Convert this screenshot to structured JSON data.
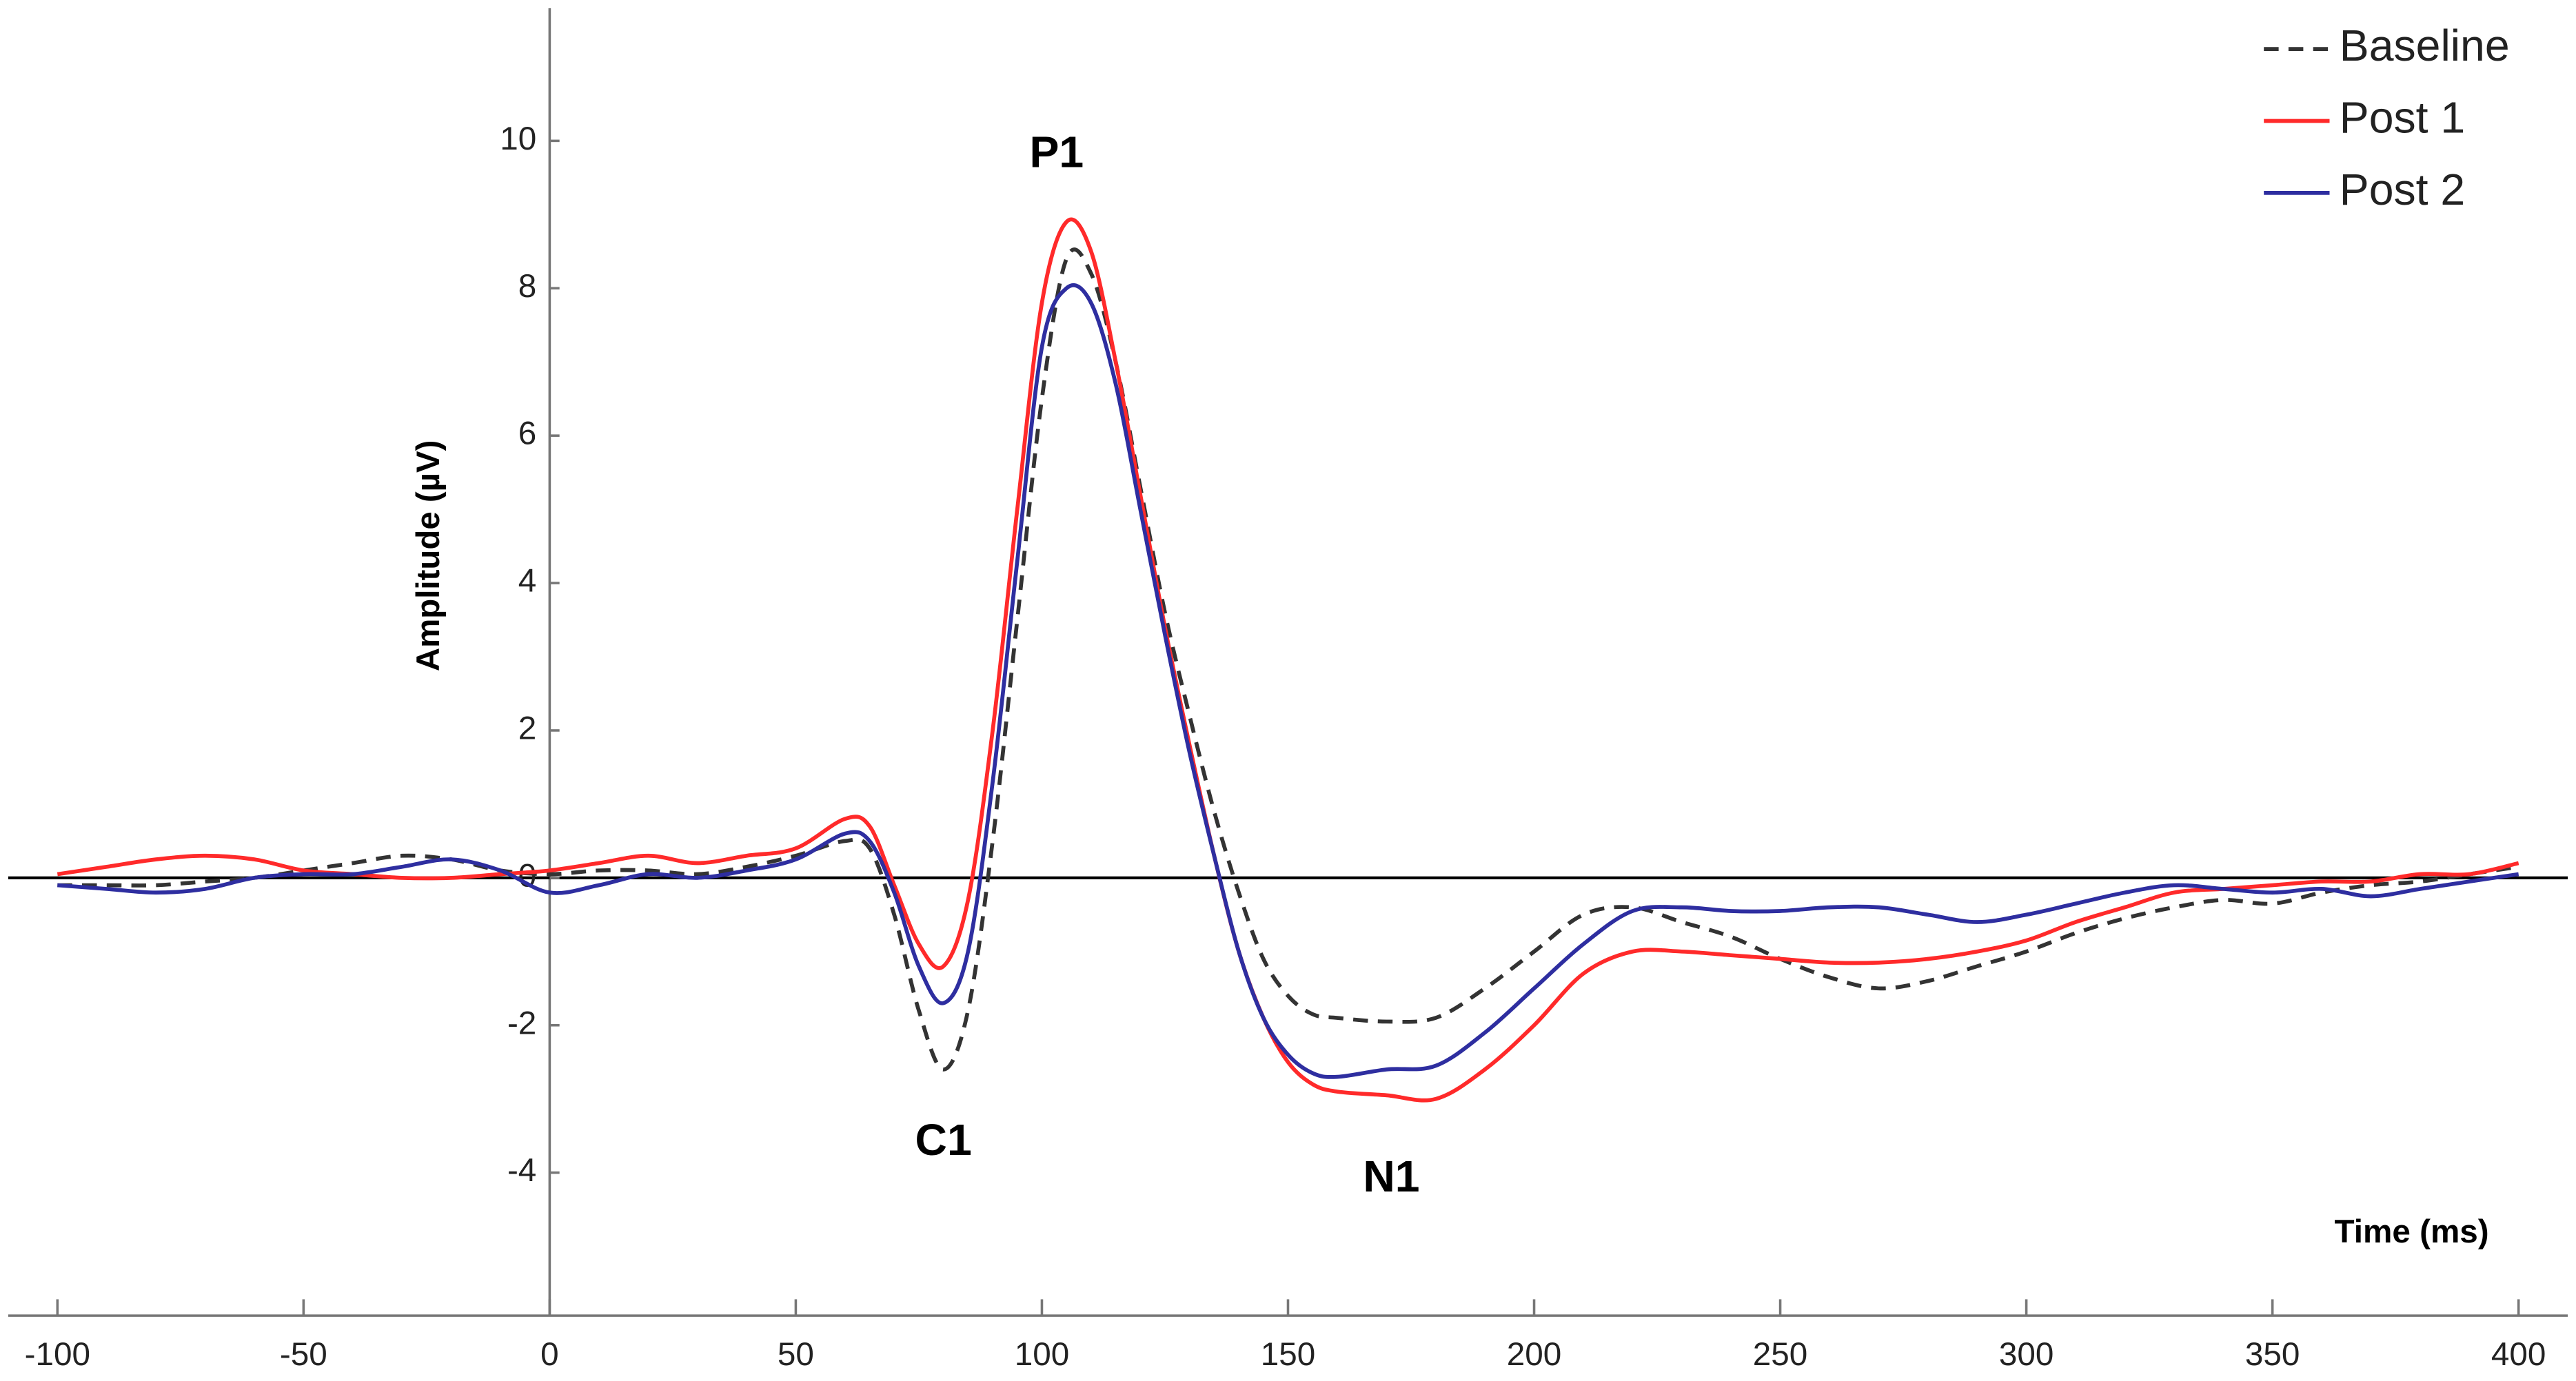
{
  "chart_data": {
    "type": "line",
    "x_label": "Time (ms)",
    "y_label": "Amplitude (µV)",
    "xlim": [
      -110,
      410
    ],
    "ylim": [
      -5.94,
      11.8
    ],
    "xticks": [
      -100,
      -50,
      0,
      50,
      100,
      150,
      200,
      250,
      300,
      350,
      400
    ],
    "yticks": [
      -4,
      -2,
      0,
      2,
      4,
      6,
      8,
      10
    ],
    "legend": "upper right",
    "x": [
      -100,
      -90,
      -80,
      -70,
      -60,
      -50,
      -40,
      -30,
      -20,
      -10,
      0,
      10,
      20,
      30,
      40,
      50,
      60,
      65,
      70,
      75,
      80,
      85,
      90,
      95,
      100,
      105,
      110,
      115,
      120,
      125,
      130,
      135,
      140,
      145,
      150,
      155,
      160,
      170,
      180,
      190,
      200,
      210,
      220,
      230,
      240,
      250,
      260,
      270,
      280,
      290,
      300,
      310,
      320,
      330,
      340,
      350,
      360,
      370,
      380,
      390,
      400
    ],
    "series": [
      {
        "name": "Baseline",
        "color": "#333333",
        "dashed": true,
        "values": [
          -0.1,
          -0.1,
          -0.1,
          -0.05,
          0.0,
          0.1,
          0.2,
          0.3,
          0.25,
          0.1,
          0.05,
          0.1,
          0.1,
          0.05,
          0.15,
          0.3,
          0.5,
          0.4,
          -0.5,
          -1.8,
          -2.6,
          -1.8,
          0.5,
          3.5,
          6.5,
          8.4,
          8.2,
          7.0,
          5.3,
          3.6,
          2.2,
          0.9,
          -0.2,
          -1.1,
          -1.6,
          -1.85,
          -1.9,
          -1.95,
          -1.9,
          -1.5,
          -1.0,
          -0.5,
          -0.4,
          -0.6,
          -0.8,
          -1.1,
          -1.35,
          -1.5,
          -1.4,
          -1.2,
          -1.0,
          -0.75,
          -0.55,
          -0.4,
          -0.3,
          -0.35,
          -0.2,
          -0.1,
          -0.05,
          0.05,
          0.15
        ]
      },
      {
        "name": "Post 1",
        "color": "#ff2a2a",
        "dashed": false,
        "values": [
          0.05,
          0.15,
          0.25,
          0.3,
          0.25,
          0.1,
          0.05,
          0.0,
          0.0,
          0.05,
          0.1,
          0.2,
          0.3,
          0.2,
          0.3,
          0.4,
          0.8,
          0.7,
          -0.1,
          -0.9,
          -1.2,
          -0.3,
          2.0,
          5.0,
          7.8,
          8.9,
          8.5,
          7.0,
          5.2,
          3.4,
          1.8,
          0.3,
          -1.0,
          -1.9,
          -2.5,
          -2.8,
          -2.9,
          -2.95,
          -3.0,
          -2.6,
          -2.0,
          -1.3,
          -1.0,
          -1.0,
          -1.05,
          -1.1,
          -1.15,
          -1.15,
          -1.1,
          -1.0,
          -0.85,
          -0.6,
          -0.4,
          -0.2,
          -0.15,
          -0.1,
          -0.05,
          -0.05,
          0.05,
          0.05,
          0.2
        ]
      },
      {
        "name": "Post 2",
        "color": "#2e2ea0",
        "dashed": false,
        "values": [
          -0.1,
          -0.15,
          -0.2,
          -0.15,
          0.0,
          0.05,
          0.05,
          0.15,
          0.25,
          0.1,
          -0.2,
          -0.1,
          0.05,
          0.0,
          0.1,
          0.25,
          0.6,
          0.5,
          -0.2,
          -1.2,
          -1.7,
          -1.0,
          1.3,
          4.3,
          7.2,
          8.0,
          7.8,
          6.7,
          5.0,
          3.3,
          1.7,
          0.3,
          -1.0,
          -1.9,
          -2.4,
          -2.65,
          -2.7,
          -2.6,
          -2.55,
          -2.1,
          -1.5,
          -0.9,
          -0.45,
          -0.4,
          -0.45,
          -0.45,
          -0.4,
          -0.4,
          -0.5,
          -0.6,
          -0.5,
          -0.35,
          -0.2,
          -0.1,
          -0.15,
          -0.2,
          -0.15,
          -0.25,
          -0.15,
          -0.05,
          0.05
        ]
      }
    ],
    "annotations": [
      {
        "text": "P1",
        "x": 103,
        "y": 9.8
      },
      {
        "text": "C1",
        "x": 80,
        "y": -3.6
      },
      {
        "text": "N1",
        "x": 171,
        "y": -4.1
      }
    ]
  }
}
